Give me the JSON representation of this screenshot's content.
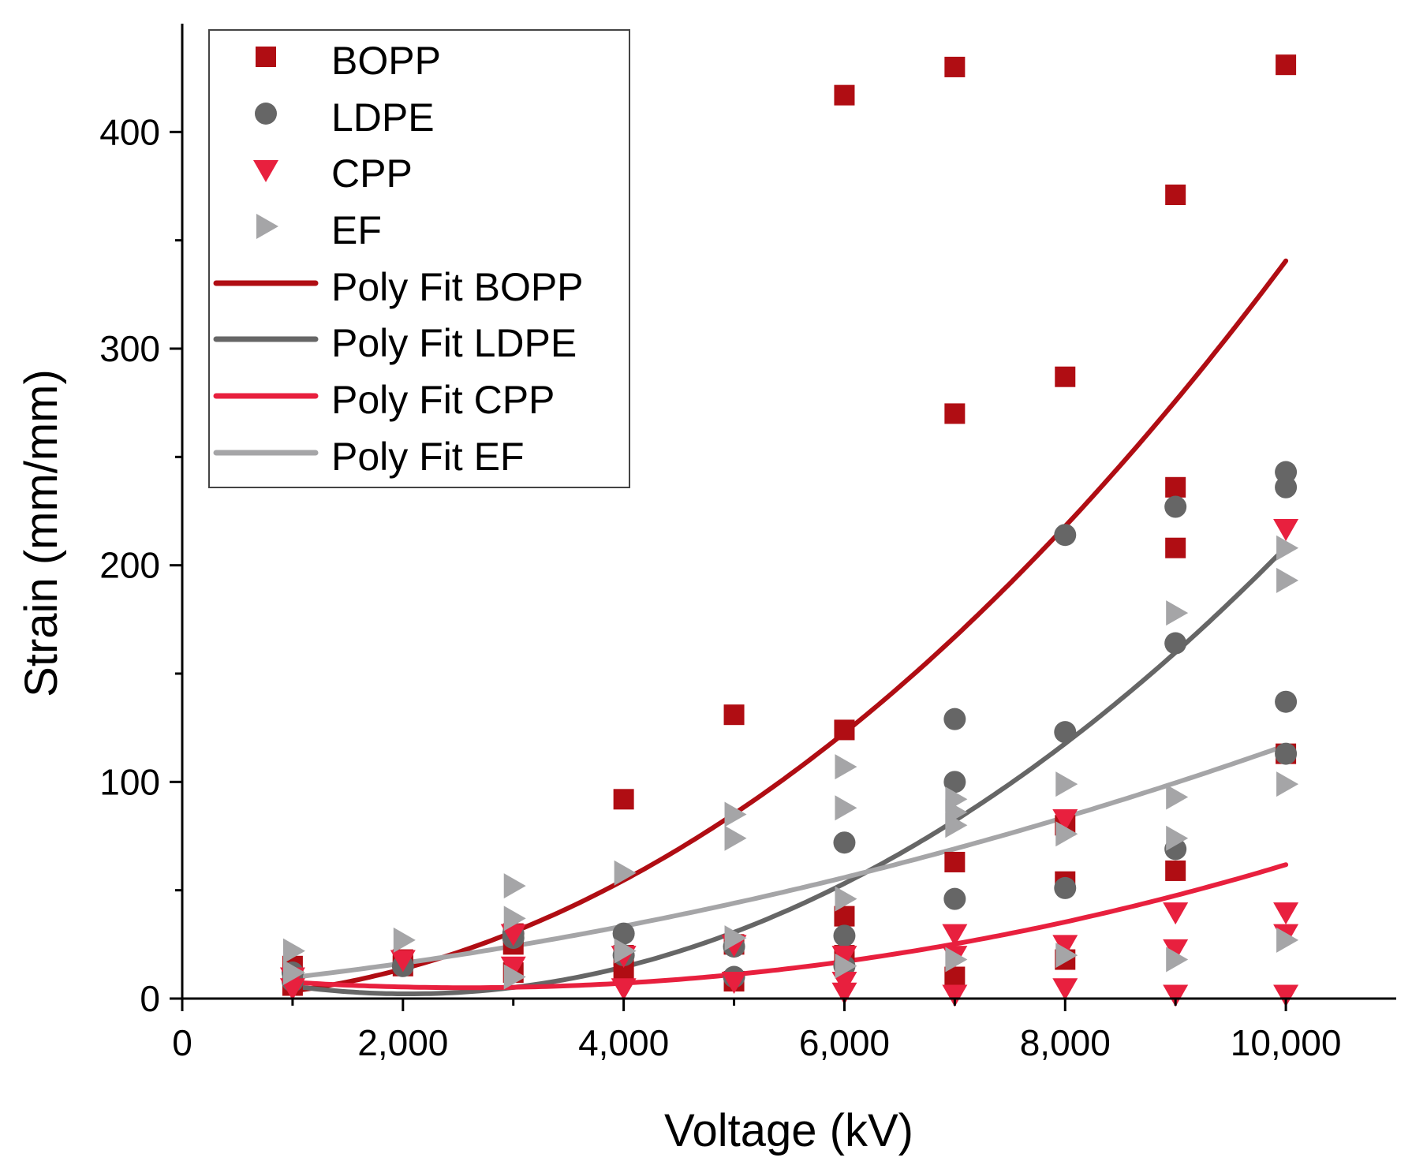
{
  "chart_data": {
    "type": "scatter",
    "title": "",
    "xlabel": "Voltage (kV)",
    "ylabel": "Strain (mm/mm)",
    "xlim": [
      0,
      11000
    ],
    "ylim": [
      0,
      450
    ],
    "x_ticks": [
      0,
      2000,
      4000,
      6000,
      8000,
      10000
    ],
    "x_tick_labels": [
      "0",
      "2,000",
      "4,000",
      "6,000",
      "8,000",
      "10,000"
    ],
    "y_ticks": [
      0,
      100,
      200,
      300,
      400
    ],
    "y_tick_labels": [
      "0",
      "100",
      "200",
      "300",
      "400"
    ],
    "grid": false,
    "legend_position": "top-left",
    "series": [
      {
        "name": "BOPP",
        "marker": "square",
        "color": "#b00d13",
        "x": [
          1000,
          1000,
          2000,
          2000,
          3000,
          3000,
          3000,
          4000,
          4000,
          4000,
          5000,
          5000,
          5000,
          6000,
          6000,
          6000,
          6000,
          7000,
          7000,
          7000,
          7000,
          8000,
          8000,
          8000,
          8000,
          9000,
          9000,
          9000,
          9000,
          10000,
          10000
        ],
        "y": [
          6,
          15,
          15,
          18,
          12,
          25,
          30,
          92,
          20,
          12,
          131,
          25,
          8,
          417,
          124,
          38,
          20,
          430,
          270,
          63,
          10,
          287,
          80,
          54,
          18,
          371,
          236,
          208,
          59,
          431,
          113
        ]
      },
      {
        "name": "LDPE",
        "marker": "circle",
        "color": "#666666",
        "x": [
          1000,
          1000,
          2000,
          3000,
          3000,
          4000,
          4000,
          5000,
          5000,
          6000,
          6000,
          6000,
          7000,
          7000,
          7000,
          8000,
          8000,
          8000,
          9000,
          9000,
          9000,
          10000,
          10000,
          10000,
          10000
        ],
        "y": [
          8,
          12,
          15,
          30,
          28,
          30,
          20,
          24,
          10,
          72,
          29,
          15,
          129,
          100,
          46,
          214,
          123,
          51,
          227,
          164,
          69,
          243,
          236,
          137,
          113
        ]
      },
      {
        "name": "CPP",
        "marker": "triangle-down",
        "color": "#e8203e",
        "x": [
          1000,
          1000,
          2000,
          3000,
          3000,
          4000,
          4000,
          5000,
          5000,
          6000,
          6000,
          6000,
          7000,
          7000,
          7000,
          8000,
          8000,
          8000,
          9000,
          9000,
          9000,
          10000,
          10000,
          10000,
          10000
        ],
        "y": [
          10,
          5,
          18,
          30,
          15,
          20,
          5,
          25,
          8,
          20,
          8,
          3,
          30,
          20,
          2,
          83,
          25,
          5,
          40,
          23,
          2,
          217,
          40,
          30,
          2
        ]
      },
      {
        "name": "EF",
        "marker": "triangle-right",
        "color": "#a5a5a7",
        "x": [
          1000,
          1000,
          2000,
          3000,
          3000,
          3000,
          4000,
          4000,
          5000,
          5000,
          5000,
          6000,
          6000,
          6000,
          6000,
          7000,
          7000,
          7000,
          7000,
          8000,
          8000,
          8000,
          9000,
          9000,
          9000,
          9000,
          10000,
          10000,
          10000,
          10000
        ],
        "y": [
          22,
          12,
          27,
          52,
          37,
          10,
          58,
          22,
          85,
          74,
          28,
          107,
          88,
          46,
          15,
          92,
          86,
          18,
          80,
          99,
          76,
          20,
          178,
          93,
          74,
          18,
          208,
          193,
          99,
          27
        ]
      }
    ],
    "fits": [
      {
        "name": "Poly Fit BOPP",
        "color": "#b00d13",
        "coeffs": [
          0.005716,
          5e-05,
          3.4e-06
        ]
      },
      {
        "name": "Poly Fit LDPE",
        "color": "#666666",
        "coeffs": [
          15.825,
          -0.013344,
          3.26e-06
        ]
      },
      {
        "name": "Poly Fit CPP",
        "color": "#e8203e",
        "coeffs": [
          11.8,
          -0.005278,
          1.0278e-06
        ]
      },
      {
        "name": "Poly Fit EF",
        "color": "#a5a5a7",
        "coeffs": [
          4.556,
          0.004556,
          6.67e-07
        ]
      }
    ],
    "fit_x_range": [
      1000,
      10000
    ],
    "legend_entries": [
      "BOPP",
      "LDPE",
      "CPP",
      "EF",
      "Poly Fit BOPP",
      "Poly Fit LDPE",
      "Poly Fit CPP",
      "Poly Fit EF"
    ]
  }
}
